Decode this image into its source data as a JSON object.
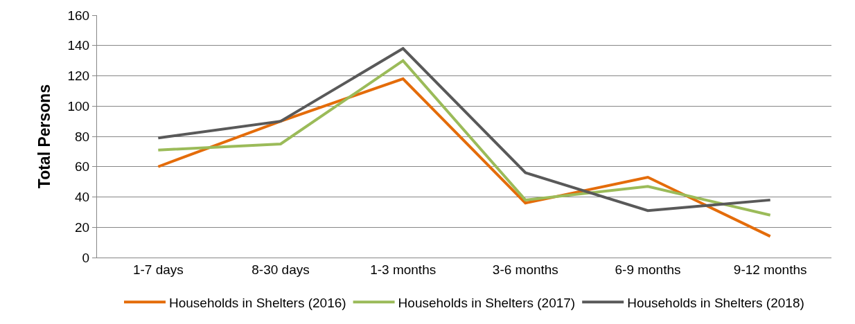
{
  "chart_data": {
    "type": "line",
    "ylabel": "Total Persons",
    "categories": [
      "1-7 days",
      "8-30 days",
      "1-3 months",
      "3-6 months",
      "6-9 months",
      "9-12 months"
    ],
    "series": [
      {
        "name": "Households in Shelters (2016)",
        "color": "#e46c0a",
        "values": [
          60,
          90,
          118,
          36,
          53,
          14
        ]
      },
      {
        "name": "Households in Shelters (2017)",
        "color": "#9bbb59",
        "values": [
          71,
          75,
          130,
          38,
          47,
          28
        ]
      },
      {
        "name": "Households in Shelters (2018)",
        "color": "#595959",
        "values": [
          79,
          90,
          138,
          56,
          31,
          38
        ]
      }
    ],
    "ylim": [
      0,
      160
    ],
    "yticks": [
      0,
      20,
      40,
      60,
      80,
      100,
      120,
      140,
      160
    ],
    "grid": "y",
    "legend": "bottom",
    "marker": "none",
    "line_style": "solid"
  }
}
